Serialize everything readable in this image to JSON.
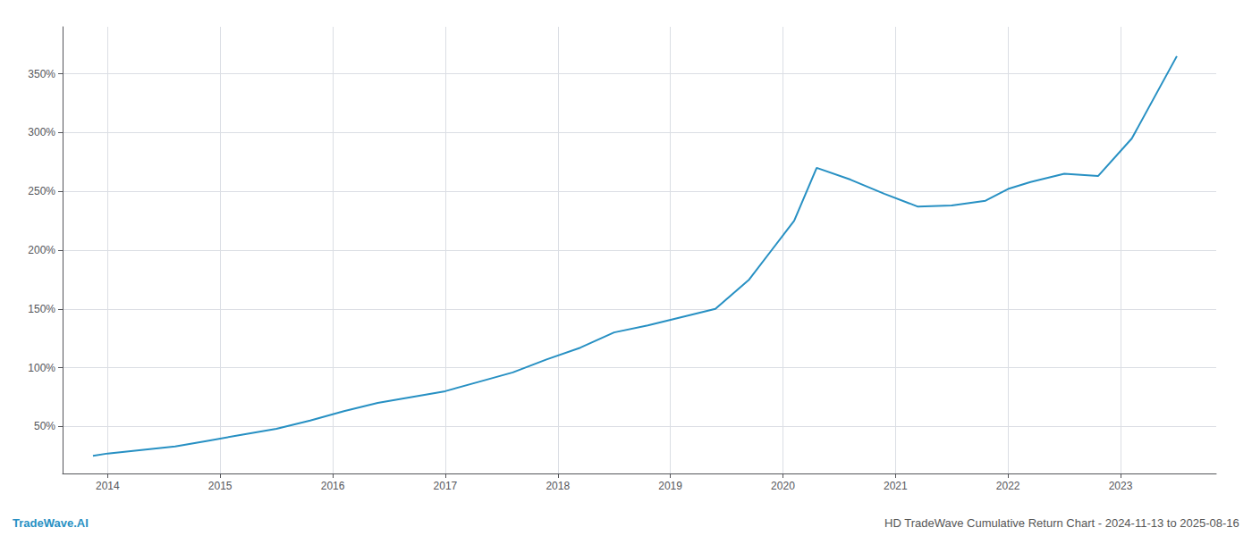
{
  "chart_data": {
    "type": "line",
    "x": [
      2013.87,
      2014.0,
      2014.3,
      2014.6,
      2014.9,
      2015.2,
      2015.5,
      2015.8,
      2016.1,
      2016.4,
      2016.7,
      2017.0,
      2017.3,
      2017.6,
      2017.9,
      2018.2,
      2018.5,
      2018.8,
      2019.1,
      2019.4,
      2019.7,
      2019.9,
      2020.1,
      2020.3,
      2020.6,
      2020.9,
      2021.2,
      2021.5,
      2021.8,
      2022.0,
      2022.2,
      2022.5,
      2022.8,
      2023.1,
      2023.5
    ],
    "values": [
      25,
      27,
      30,
      33,
      38,
      43,
      48,
      55,
      63,
      70,
      75,
      80,
      88,
      96,
      107,
      117,
      130,
      136,
      143,
      150,
      175,
      200,
      225,
      270,
      260,
      248,
      237,
      238,
      242,
      252,
      258,
      265,
      263,
      295,
      365
    ],
    "color": "#2790c3",
    "xlim": [
      2013.6,
      2023.85
    ],
    "xticks": [
      2014,
      2015,
      2016,
      2017,
      2018,
      2019,
      2020,
      2021,
      2022,
      2023
    ],
    "ylim": [
      10,
      390
    ],
    "yticks": [
      {
        "value": 50,
        "label": "50%"
      },
      {
        "value": 100,
        "label": "100%"
      },
      {
        "value": 150,
        "label": "150%"
      },
      {
        "value": 200,
        "label": "200%"
      },
      {
        "value": 250,
        "label": "250%"
      },
      {
        "value": 300,
        "label": "300%"
      },
      {
        "value": 350,
        "label": "350%"
      }
    ],
    "grid": true,
    "annotations": [
      {
        "text": "TradeWave.AI",
        "color": "#2790c3"
      },
      {
        "text": "HD TradeWave Cumulative Return Chart - 2024-11-13 to 2025-08-16",
        "color": "#555555"
      }
    ]
  }
}
